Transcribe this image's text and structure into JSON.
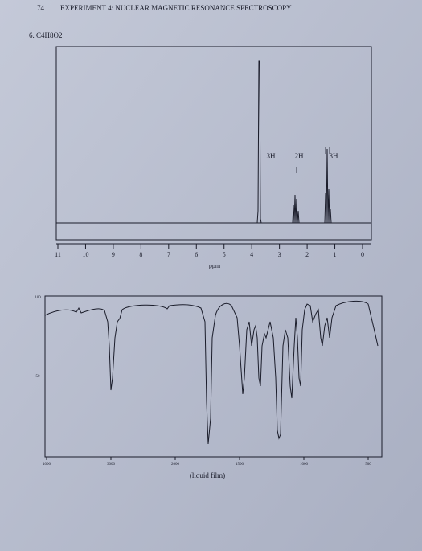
{
  "header": {
    "page_number": "74",
    "title": "EXPERIMENT 4: NUCLEAR MAGNETIC RESONANCE SPECTROSCOPY"
  },
  "problem": {
    "label": "6. C4H8O2"
  },
  "nmr": {
    "x_tick_labels": [
      "11",
      "10",
      "9",
      "8",
      "7",
      "6",
      "5",
      "4",
      "3",
      "2",
      "1",
      "0"
    ],
    "x_axis_label": "ppm",
    "integration_labels": [
      "3H",
      "2H",
      "3H"
    ]
  },
  "ir": {
    "y_tick_labels": [
      "100",
      "50"
    ],
    "x_tick_labels": [
      "4000",
      "3000",
      "2000",
      "1500",
      "1000",
      "500"
    ],
    "caption": "(liquid film)"
  }
}
